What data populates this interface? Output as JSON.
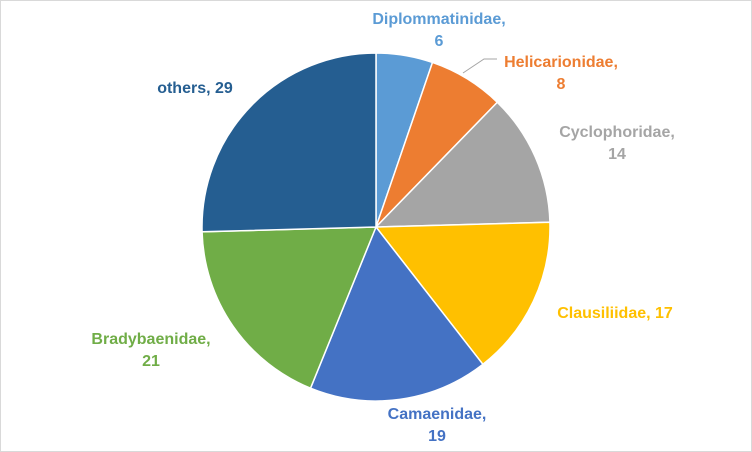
{
  "chart_data": {
    "type": "pie",
    "title": "",
    "start": "top",
    "direction": "clockwise",
    "legend": "none",
    "slices": [
      {
        "label": "Diplommatinidae",
        "value": 6,
        "color": "#5b9bd5",
        "label_color": "#5b9bd5",
        "label_line1": "Diplommatinidae,",
        "label_line2": "6"
      },
      {
        "label": "Helicarionidae",
        "value": 8,
        "color": "#ed7d31",
        "label_color": "#ed7d31",
        "label_line1": "Helicarionidae,",
        "label_line2": "8"
      },
      {
        "label": "Cyclophoridae",
        "value": 14,
        "color": "#a5a5a5",
        "label_color": "#a5a5a5",
        "label_line1": "Cyclophoridae,",
        "label_line2": "14"
      },
      {
        "label": "Clausiliidae",
        "value": 17,
        "color": "#ffc000",
        "label_color": "#ffc000",
        "label_line1": "Clausiliidae, 17",
        "label_line2": ""
      },
      {
        "label": "Camaenidae",
        "value": 19,
        "color": "#4472c4",
        "label_color": "#4472c4",
        "label_line1": "Camaenidae,",
        "label_line2": "19"
      },
      {
        "label": "Bradybaenidae",
        "value": 21,
        "color": "#70ad47",
        "label_color": "#70ad47",
        "label_line1": "Bradybaenidae,",
        "label_line2": "21"
      },
      {
        "label": "others",
        "value": 29,
        "color": "#255e91",
        "label_color": "#255e91",
        "label_line1": "others, 29",
        "label_line2": ""
      }
    ]
  }
}
